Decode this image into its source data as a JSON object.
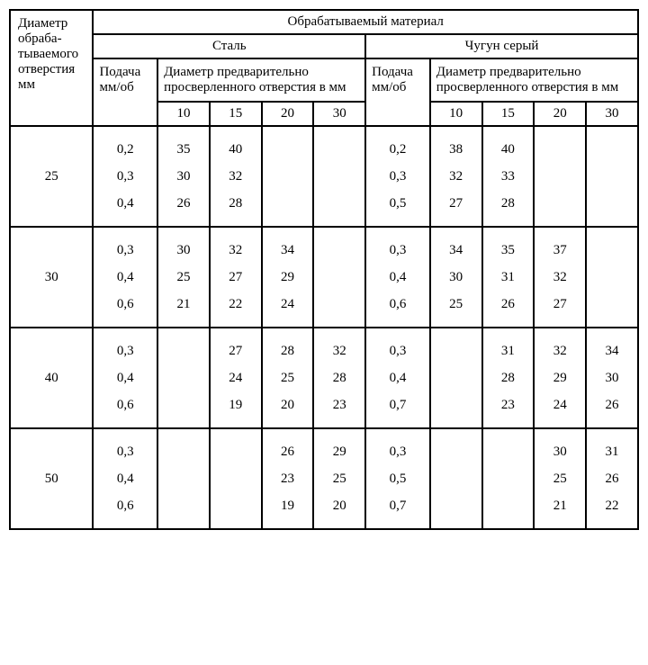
{
  "table": {
    "header": {
      "material": "Обрабатываемый материал",
      "diameter": "Диаметр обраба-\nтываемого отверстия мм",
      "steel": "Сталь",
      "cast_iron": "Чугун серый",
      "feed": "Подача мм/об",
      "prehole": "Диаметр предварительно просверленного отверстия в мм",
      "sub_cols": [
        "10",
        "15",
        "20",
        "30"
      ]
    },
    "rows": [
      {
        "diam": "25",
        "steel_feed": "0,2\n0,3\n0,4",
        "steel_10": "35\n30\n26",
        "steel_15": "40\n32\n28",
        "steel_20": "",
        "steel_30": "",
        "iron_feed": "0,2\n0,3\n0,5",
        "iron_10": "38\n32\n27",
        "iron_15": "40\n33\n28",
        "iron_20": "",
        "iron_30": ""
      },
      {
        "diam": "30",
        "steel_feed": "0,3\n0,4\n0,6",
        "steel_10": "30\n25\n21",
        "steel_15": "32\n27\n22",
        "steel_20": "34\n29\n24",
        "steel_30": "",
        "iron_feed": "0,3\n0,4\n0,6",
        "iron_10": "34\n30\n25",
        "iron_15": "35\n31\n26",
        "iron_20": "37\n32\n27",
        "iron_30": ""
      },
      {
        "diam": "40",
        "steel_feed": "0,3\n0,4\n0,6",
        "steel_10": "",
        "steel_15": "27\n24\n19",
        "steel_20": "28\n25\n20",
        "steel_30": "32\n28\n23",
        "iron_feed": "0,3\n0,4\n0,7",
        "iron_10": "",
        "iron_15": "31\n28\n23",
        "iron_20": "32\n29\n24",
        "iron_30": "34\n30\n26"
      },
      {
        "diam": "50",
        "steel_feed": "0,3\n0,4\n0,6",
        "steel_10": "",
        "steel_15": "",
        "steel_20": "26\n23\n19",
        "steel_30": "29\n25\n20",
        "iron_feed": "0,3\n0,5\n0,7",
        "iron_10": "",
        "iron_15": "",
        "iron_20": "30\n25\n21",
        "iron_30": "31\n26\n22"
      }
    ]
  }
}
